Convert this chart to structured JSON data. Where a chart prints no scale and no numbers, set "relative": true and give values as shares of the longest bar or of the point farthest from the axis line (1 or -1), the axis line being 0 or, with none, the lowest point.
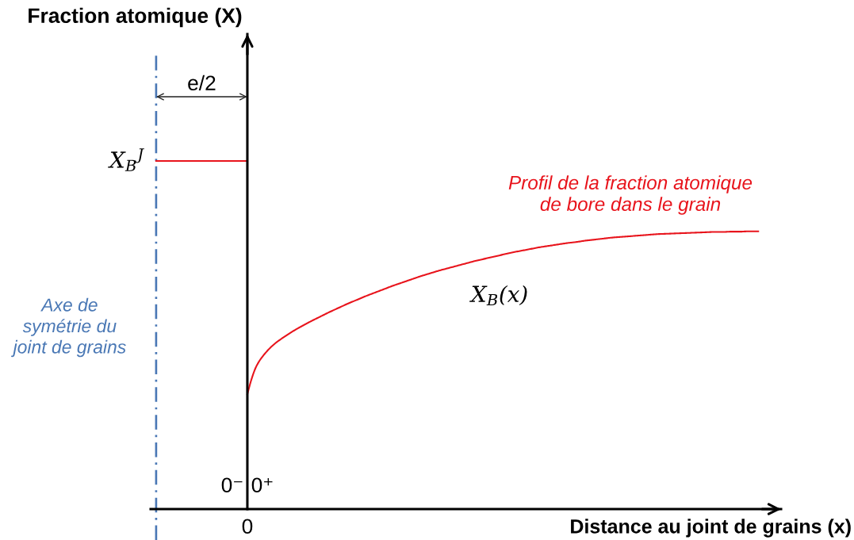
{
  "chart_data": {
    "type": "line",
    "relative": true,
    "xlabel": "Distance au joint de grains (x)",
    "categories": [
      null,
      null,
      null,
      null,
      null,
      null,
      null,
      null,
      null,
      null,
      null,
      null,
      null,
      null,
      null,
      null,
      null,
      null,
      null,
      null,
      null,
      null,
      null,
      null,
      null,
      null,
      null,
      null,
      null,
      null,
      null,
      null,
      null,
      null,
      null,
      null,
      null,
      null,
      null,
      null,
      null,
      null,
      null,
      null,
      null,
      null,
      null,
      null,
      null,
      null,
      null,
      null,
      null,
      null,
      null,
      null,
      null,
      null,
      null,
      null,
      null,
      null,
      null,
      null,
      null,
      null,
      null
    ],
    "series": [
      {
        "name": "X$_{B}$$^{J}$",
        "color": "#e8141c",
        "values": [
          1,
          1,
          1,
          1,
          1,
          1,
          1,
          1,
          1,
          1,
          1,
          null,
          null,
          null,
          null,
          null,
          null,
          null,
          null,
          null,
          null,
          null,
          null,
          null,
          null,
          null,
          null,
          null,
          null,
          null,
          null,
          null,
          null,
          null,
          null,
          null,
          null,
          null,
          null,
          null,
          null,
          null,
          null,
          null,
          null,
          null,
          null,
          null,
          null,
          null,
          null,
          null,
          null,
          null,
          null,
          null,
          null,
          null,
          null,
          null,
          null,
          null,
          null,
          null,
          null,
          null,
          null
        ]
      },
      {
        "name": "X$_{B}$(x)",
        "color": "#e8141c",
        "values": [
          null,
          null,
          null,
          null,
          null,
          null,
          null,
          null,
          null,
          null,
          0.33,
          0.411,
          0.449,
          0.475,
          0.494,
          0.511,
          0.526,
          0.54,
          0.553,
          0.566,
          0.578,
          0.59,
          0.601,
          0.612,
          0.622,
          0.632,
          0.642,
          0.651,
          0.66,
          0.669,
          0.677,
          0.685,
          0.692,
          0.699,
          0.706,
          0.713,
          0.719,
          0.725,
          0.731,
          0.737,
          0.742,
          0.747,
          0.752,
          0.756,
          0.76,
          0.764,
          0.767,
          0.771,
          0.774,
          0.777,
          0.78,
          0.782,
          0.784,
          0.786,
          0.788,
          0.79,
          0.791,
          0.792,
          0.793,
          0.794,
          0.795,
          0.796,
          0.796,
          0.797,
          0.797,
          0.798,
          0.798
        ]
      }
    ],
    "annotations": [
      "Fraction atomique (X)",
      "e/2",
      "0⁻",
      "0⁺",
      "0",
      "Axe de\nsymétrie du\njoint de grains",
      "Profil de la fraction atomique\nde bore dans le grain"
    ],
    "marker": "none",
    "line_style": "solid",
    "legend": false,
    "grid": false
  }
}
